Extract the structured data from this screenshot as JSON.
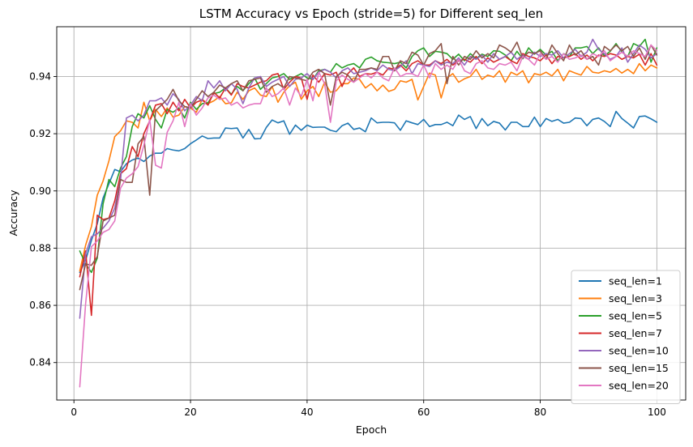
{
  "chart_data": {
    "type": "line",
    "title": "LSTM Accuracy vs Epoch (stride=5) for Different seq_len",
    "xlabel": "Epoch",
    "ylabel": "Accuracy",
    "xlim": [
      -2.95,
      104.95
    ],
    "ylim": [
      0.8269,
      0.9574
    ],
    "x_ticks": [
      0,
      20,
      40,
      60,
      80,
      100
    ],
    "y_ticks": [
      0.84,
      0.86,
      0.88,
      0.9,
      0.92,
      0.94
    ],
    "y_tick_labels": [
      "0.84",
      "0.86",
      "0.88",
      "0.90",
      "0.92",
      "0.94"
    ],
    "grid": true,
    "legend_position": "lower right",
    "x": [
      1,
      2,
      3,
      4,
      5,
      6,
      7,
      8,
      9,
      10,
      11,
      12,
      13,
      14,
      15,
      16,
      17,
      18,
      19,
      20,
      21,
      22,
      23,
      24,
      25,
      26,
      27,
      28,
      29,
      30,
      31,
      32,
      33,
      34,
      35,
      36,
      37,
      38,
      39,
      40,
      41,
      42,
      43,
      44,
      45,
      46,
      47,
      48,
      49,
      50,
      51,
      52,
      53,
      54,
      55,
      56,
      57,
      58,
      59,
      60,
      61,
      62,
      63,
      64,
      65,
      66,
      67,
      68,
      69,
      70,
      71,
      72,
      73,
      74,
      75,
      76,
      77,
      78,
      79,
      80,
      81,
      82,
      83,
      84,
      85,
      86,
      87,
      88,
      89,
      90,
      91,
      92,
      93,
      94,
      95,
      96,
      97,
      98,
      99,
      100
    ],
    "series": [
      {
        "name": "seq_len=1",
        "color": "#1f77b4",
        "values": [
          0.8715,
          0.8757,
          0.8827,
          0.8885,
          0.8975,
          0.9025,
          0.9075,
          0.9067,
          0.9095,
          0.9108,
          0.9115,
          0.9103,
          0.9122,
          0.9132,
          0.9132,
          0.9148,
          0.9143,
          0.914,
          0.9148,
          0.9165,
          0.9178,
          0.9192,
          0.9183,
          0.9185,
          0.9185,
          0.922,
          0.9218,
          0.922,
          0.9185,
          0.9215,
          0.9182,
          0.9183,
          0.9222,
          0.9248,
          0.9238,
          0.9245,
          0.9198,
          0.923,
          0.9212,
          0.923,
          0.9222,
          0.9223,
          0.9223,
          0.9212,
          0.9207,
          0.9228,
          0.9237,
          0.9215,
          0.922,
          0.9207,
          0.9255,
          0.9238,
          0.924,
          0.924,
          0.9238,
          0.9212,
          0.9245,
          0.9238,
          0.9232,
          0.925,
          0.9225,
          0.9232,
          0.9232,
          0.924,
          0.9228,
          0.9265,
          0.925,
          0.926,
          0.9218,
          0.9253,
          0.9228,
          0.9243,
          0.9237,
          0.9213,
          0.924,
          0.924,
          0.9225,
          0.9225,
          0.9258,
          0.9225,
          0.9253,
          0.9243,
          0.925,
          0.9237,
          0.924,
          0.9255,
          0.9253,
          0.9228,
          0.925,
          0.9255,
          0.9243,
          0.9225,
          0.9278,
          0.9253,
          0.9237,
          0.922,
          0.926,
          0.9262,
          0.9252,
          0.924
        ]
      },
      {
        "name": "seq_len=3",
        "color": "#ff7f0e",
        "values": [
          0.872,
          0.881,
          0.8875,
          0.8985,
          0.9035,
          0.9105,
          0.919,
          0.921,
          0.9245,
          0.924,
          0.922,
          0.931,
          0.9245,
          0.9285,
          0.926,
          0.929,
          0.9258,
          0.9265,
          0.9295,
          0.929,
          0.9275,
          0.932,
          0.9305,
          0.9315,
          0.933,
          0.9305,
          0.9308,
          0.9345,
          0.932,
          0.935,
          0.936,
          0.9335,
          0.933,
          0.9365,
          0.931,
          0.9345,
          0.9368,
          0.938,
          0.932,
          0.935,
          0.9365,
          0.933,
          0.938,
          0.9345,
          0.935,
          0.9375,
          0.9375,
          0.9395,
          0.939,
          0.936,
          0.9375,
          0.935,
          0.937,
          0.9348,
          0.9355,
          0.9385,
          0.938,
          0.939,
          0.9318,
          0.9365,
          0.9412,
          0.9405,
          0.9325,
          0.9395,
          0.941,
          0.938,
          0.9392,
          0.94,
          0.9425,
          0.939,
          0.9405,
          0.9398,
          0.942,
          0.938,
          0.9415,
          0.9405,
          0.942,
          0.9378,
          0.941,
          0.9405,
          0.9415,
          0.9402,
          0.9425,
          0.9385,
          0.942,
          0.9412,
          0.9405,
          0.9435,
          0.9415,
          0.9412,
          0.942,
          0.9415,
          0.9428,
          0.9412,
          0.9425,
          0.941,
          0.9445,
          0.942,
          0.944,
          0.943
        ]
      },
      {
        "name": "seq_len=5",
        "color": "#2ca02c",
        "values": [
          0.879,
          0.8745,
          0.8715,
          0.8765,
          0.8955,
          0.904,
          0.9015,
          0.908,
          0.912,
          0.9225,
          0.927,
          0.9255,
          0.9298,
          0.925,
          0.922,
          0.9285,
          0.9275,
          0.929,
          0.9255,
          0.931,
          0.9285,
          0.9305,
          0.9308,
          0.934,
          0.9345,
          0.936,
          0.9338,
          0.9365,
          0.935,
          0.9375,
          0.9395,
          0.9355,
          0.9375,
          0.9395,
          0.94,
          0.941,
          0.939,
          0.94,
          0.941,
          0.9395,
          0.939,
          0.942,
          0.9425,
          0.9415,
          0.9445,
          0.943,
          0.944,
          0.9445,
          0.943,
          0.946,
          0.9468,
          0.9455,
          0.945,
          0.9448,
          0.9445,
          0.945,
          0.943,
          0.947,
          0.949,
          0.95,
          0.947,
          0.9488,
          0.9485,
          0.948,
          0.946,
          0.9478,
          0.9455,
          0.948,
          0.9462,
          0.9478,
          0.947,
          0.949,
          0.9488,
          0.9475,
          0.9455,
          0.9488,
          0.9462,
          0.95,
          0.9478,
          0.9495,
          0.9475,
          0.9488,
          0.9455,
          0.948,
          0.947,
          0.95,
          0.95,
          0.9505,
          0.948,
          0.95,
          0.9472,
          0.9488,
          0.9515,
          0.9485,
          0.947,
          0.9515,
          0.9505,
          0.953,
          0.945,
          0.95
        ]
      },
      {
        "name": "seq_len=7",
        "color": "#d62728",
        "values": [
          0.87,
          0.879,
          0.8565,
          0.8915,
          0.89,
          0.8905,
          0.8965,
          0.906,
          0.9078,
          0.9155,
          0.912,
          0.92,
          0.9245,
          0.93,
          0.9305,
          0.927,
          0.931,
          0.928,
          0.932,
          0.929,
          0.931,
          0.9318,
          0.93,
          0.9345,
          0.9325,
          0.936,
          0.9335,
          0.9375,
          0.9365,
          0.936,
          0.937,
          0.938,
          0.9385,
          0.9405,
          0.941,
          0.9355,
          0.938,
          0.94,
          0.9395,
          0.932,
          0.9405,
          0.938,
          0.941,
          0.9405,
          0.9415,
          0.9365,
          0.941,
          0.943,
          0.94,
          0.941,
          0.9408,
          0.9415,
          0.9405,
          0.943,
          0.9425,
          0.944,
          0.942,
          0.9445,
          0.9455,
          0.944,
          0.944,
          0.9455,
          0.9445,
          0.946,
          0.944,
          0.9455,
          0.946,
          0.945,
          0.947,
          0.9445,
          0.9465,
          0.945,
          0.946,
          0.947,
          0.9455,
          0.9445,
          0.948,
          0.947,
          0.9465,
          0.9455,
          0.9475,
          0.9445,
          0.947,
          0.9465,
          0.947,
          0.948,
          0.946,
          0.9475,
          0.9455,
          0.9475,
          0.947,
          0.948,
          0.9475,
          0.946,
          0.947,
          0.9465,
          0.9478,
          0.944,
          0.948,
          0.944
        ]
      },
      {
        "name": "seq_len=10",
        "color": "#9467bd",
        "values": [
          0.8555,
          0.878,
          0.884,
          0.885,
          0.887,
          0.8895,
          0.894,
          0.904,
          0.9255,
          0.9265,
          0.9245,
          0.9265,
          0.9315,
          0.9315,
          0.9325,
          0.93,
          0.934,
          0.932,
          0.928,
          0.93,
          0.933,
          0.9315,
          0.9385,
          0.936,
          0.9385,
          0.935,
          0.9375,
          0.9355,
          0.9305,
          0.936,
          0.9395,
          0.94,
          0.9365,
          0.938,
          0.939,
          0.94,
          0.9365,
          0.939,
          0.9395,
          0.941,
          0.939,
          0.9415,
          0.9425,
          0.9415,
          0.9395,
          0.942,
          0.943,
          0.941,
          0.9415,
          0.942,
          0.943,
          0.942,
          0.944,
          0.9425,
          0.942,
          0.9435,
          0.9455,
          0.941,
          0.9445,
          0.944,
          0.9435,
          0.9455,
          0.944,
          0.945,
          0.9445,
          0.9465,
          0.944,
          0.947,
          0.946,
          0.9475,
          0.945,
          0.948,
          0.946,
          0.947,
          0.9485,
          0.946,
          0.9475,
          0.946,
          0.9485,
          0.947,
          0.948,
          0.9475,
          0.949,
          0.9465,
          0.948,
          0.9495,
          0.947,
          0.9485,
          0.953,
          0.9495,
          0.948,
          0.946,
          0.947,
          0.95,
          0.945,
          0.948,
          0.951,
          0.9495,
          0.9465,
          0.948
        ]
      },
      {
        "name": "seq_len=15",
        "color": "#8c564b",
        "values": [
          0.8655,
          0.8745,
          0.874,
          0.877,
          0.8895,
          0.8905,
          0.8915,
          0.904,
          0.903,
          0.903,
          0.9165,
          0.919,
          0.8985,
          0.928,
          0.93,
          0.932,
          0.9355,
          0.9315,
          0.9295,
          0.929,
          0.932,
          0.935,
          0.933,
          0.9345,
          0.937,
          0.936,
          0.9375,
          0.9385,
          0.935,
          0.9385,
          0.939,
          0.9395,
          0.9345,
          0.9365,
          0.9375,
          0.936,
          0.94,
          0.9395,
          0.939,
          0.9385,
          0.9415,
          0.9425,
          0.941,
          0.93,
          0.94,
          0.9415,
          0.9405,
          0.938,
          0.9425,
          0.9425,
          0.943,
          0.9425,
          0.947,
          0.947,
          0.942,
          0.9455,
          0.9445,
          0.9485,
          0.9475,
          0.944,
          0.948,
          0.949,
          0.9515,
          0.9375,
          0.947,
          0.944,
          0.947,
          0.946,
          0.949,
          0.9465,
          0.948,
          0.9465,
          0.951,
          0.95,
          0.9485,
          0.952,
          0.9465,
          0.9485,
          0.948,
          0.949,
          0.946,
          0.951,
          0.948,
          0.9455,
          0.951,
          0.9475,
          0.949,
          0.946,
          0.947,
          0.944,
          0.9505,
          0.949,
          0.951,
          0.949,
          0.9505,
          0.947,
          0.95,
          0.946,
          0.951,
          0.9475
        ]
      },
      {
        "name": "seq_len=20",
        "color": "#e377c2",
        "values": [
          0.8315,
          0.8605,
          0.8805,
          0.8825,
          0.8855,
          0.8865,
          0.8895,
          0.901,
          0.9045,
          0.906,
          0.9085,
          0.916,
          0.925,
          0.909,
          0.908,
          0.9205,
          0.9245,
          0.931,
          0.9225,
          0.9305,
          0.9265,
          0.929,
          0.9325,
          0.9335,
          0.932,
          0.9325,
          0.93,
          0.931,
          0.929,
          0.93,
          0.9305,
          0.9305,
          0.936,
          0.933,
          0.934,
          0.936,
          0.93,
          0.936,
          0.933,
          0.939,
          0.9315,
          0.9415,
          0.9375,
          0.924,
          0.9385,
          0.9405,
          0.939,
          0.938,
          0.9395,
          0.941,
          0.9395,
          0.9415,
          0.9395,
          0.9385,
          0.943,
          0.94,
          0.941,
          0.941,
          0.94,
          0.944,
          0.9395,
          0.9445,
          0.9425,
          0.944,
          0.9425,
          0.946,
          0.942,
          0.941,
          0.9445,
          0.9455,
          0.943,
          0.9425,
          0.9445,
          0.944,
          0.945,
          0.942,
          0.947,
          0.946,
          0.944,
          0.948,
          0.946,
          0.947,
          0.945,
          0.948,
          0.946,
          0.9465,
          0.9475,
          0.946,
          0.948,
          0.947,
          0.949,
          0.9455,
          0.947,
          0.9485,
          0.947,
          0.949,
          0.948,
          0.947,
          0.951,
          0.949
        ]
      }
    ]
  }
}
